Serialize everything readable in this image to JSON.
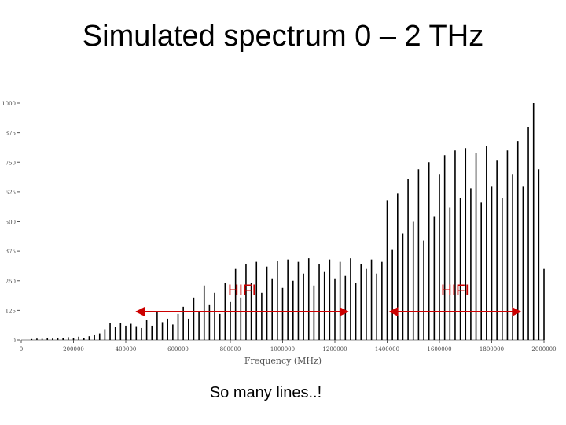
{
  "chart_data": {
    "type": "bar",
    "title": "Simulated spectrum 0 – 2 THz",
    "x_label": "Frequency (MHz)",
    "caption": "So many lines..!",
    "series": [
      {
        "color": "#000000",
        "x": [
          40000,
          60000,
          80000,
          100000,
          120000,
          140000,
          160000,
          180000,
          200000,
          220000,
          240000,
          260000,
          280000,
          300000,
          320000,
          340000,
          360000,
          380000,
          400000,
          420000,
          440000,
          460000,
          480000,
          500000,
          520000,
          540000,
          560000,
          580000,
          600000,
          620000,
          640000,
          660000,
          680000,
          700000,
          720000,
          740000,
          760000,
          780000,
          800000,
          820000,
          840000,
          860000,
          880000,
          900000,
          920000,
          940000,
          960000,
          980000,
          1000000,
          1020000,
          1040000,
          1060000,
          1080000,
          1100000,
          1120000,
          1140000,
          1160000,
          1180000,
          1200000,
          1220000,
          1240000,
          1260000,
          1280000,
          1300000,
          1320000,
          1340000,
          1360000,
          1380000,
          1400000,
          1420000,
          1440000,
          1460000,
          1480000,
          1500000,
          1520000,
          1540000,
          1560000,
          1580000,
          1600000,
          1620000,
          1640000,
          1660000,
          1680000,
          1700000,
          1720000,
          1740000,
          1760000,
          1780000,
          1800000,
          1820000,
          1840000,
          1860000,
          1880000,
          1900000,
          1920000,
          1940000,
          1960000,
          1980000,
          2000000
        ],
        "values": [
          4,
          6,
          5,
          8,
          6,
          10,
          7,
          12,
          9,
          14,
          10,
          16,
          20,
          28,
          45,
          70,
          55,
          72,
          60,
          68,
          58,
          50,
          85,
          60,
          120,
          75,
          90,
          65,
          110,
          140,
          90,
          180,
          120,
          230,
          150,
          200,
          110,
          240,
          160,
          300,
          180,
          320,
          240,
          330,
          200,
          310,
          260,
          335,
          220,
          340,
          250,
          330,
          280,
          345,
          230,
          320,
          290,
          340,
          260,
          330,
          270,
          345,
          240,
          320,
          300,
          340,
          280,
          330,
          590,
          380,
          620,
          450,
          680,
          500,
          720,
          420,
          750,
          520,
          700,
          780,
          560,
          800,
          600,
          810,
          640,
          790,
          580,
          820,
          650,
          760,
          600,
          800,
          700,
          840,
          650,
          900,
          1000,
          720,
          300
        ]
      }
    ],
    "xlim": [
      0,
      2000000
    ],
    "xticks": [
      0,
      200000,
      400000,
      600000,
      800000,
      1000000,
      1200000,
      1400000,
      1600000,
      1800000,
      2000000
    ],
    "ylim": [
      0,
      1000
    ],
    "yticks": [
      0,
      125,
      250,
      375,
      500,
      625,
      750,
      875,
      1000
    ],
    "annotations": [
      {
        "text": "HIFI",
        "range": [
          440000,
          1250000
        ],
        "color": "#cc0000"
      },
      {
        "text": "HIFI",
        "range": [
          1410000,
          1910000
        ],
        "color": "#cc0000"
      }
    ]
  }
}
